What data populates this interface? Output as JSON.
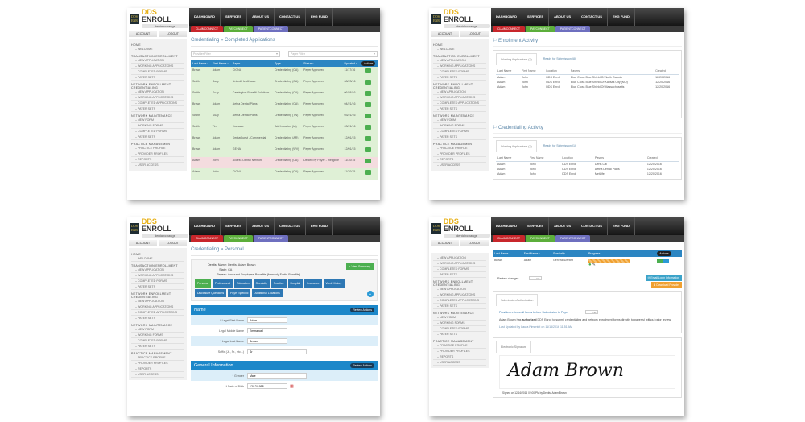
{
  "brand": {
    "logo_box": "DDS ENROLL",
    "name_dds": "DDS",
    "name_enroll": "ENROLL",
    "tagline": "dentalxchange"
  },
  "account": {
    "account_label": "ACCOUNT",
    "logout_label": "LOGOUT"
  },
  "topnav": [
    "DASHBOARD",
    "SERVICES",
    "ABOUT US",
    "CONTACT US",
    "EHG FUND"
  ],
  "subnav": [
    "CLAIMCONNECT",
    "PAYCONNECT",
    "PATIENTCONNECT"
  ],
  "sidebar": {
    "home": "HOME",
    "welcome": "WELCOME",
    "transaction": "TRANSACTION ENROLLMENT",
    "transaction_items": [
      "NEW APPLICATION",
      "WORKING APPLICATIONS",
      "COMPLETED FORMS",
      "PAYER SETS"
    ],
    "network_cred": "NETWORK ENROLLMENT CREDENTIALING",
    "network_cred_items": [
      "NEW APPLICATION",
      "WORKING APPLICATIONS",
      "COMPLETED APPLICATIONS",
      "PAYER SETS"
    ],
    "network_maint": "NETWORK MAINTENANCE",
    "network_maint_items": [
      "NEW FORM",
      "WORKING FORMS",
      "COMPLETED FORMS",
      "PAYER SETS"
    ],
    "practice": "PRACTICE MANAGEMENT",
    "practice_items": [
      "PRACTICE PROFILE",
      "PROVIDER PROFILES",
      "REPORTS",
      "USER ACCESS"
    ]
  },
  "completed": {
    "breadcrumb": "Credentialing  »  Completed Applications",
    "provider_filter_placeholder": "Provider Filter",
    "payer_filter_placeholder": "Payer Filter",
    "columns": [
      "Last Name ›",
      "First Name ›",
      "Payer",
      "Type",
      "Status ›",
      "Updated ›",
      "Actions"
    ],
    "rows": [
      {
        "last": "Brown",
        "first": "Adam",
        "payer": "CIGNA",
        "type": "Credentialing (CA)",
        "status": "Payer Approved",
        "updated": "11/17/16",
        "state": "ok"
      },
      {
        "last": "Smith",
        "first": "Suzy",
        "payer": "United Healthcare",
        "type": "Credentialing (CA)",
        "status": "Payer Approved",
        "updated": "08/23/16",
        "state": "ok"
      },
      {
        "last": "Smith",
        "first": "Suzy",
        "payer": "Careington Benefit Solutions",
        "type": "Credentialing (CA)",
        "status": "Payer Approved",
        "updated": "06/28/16",
        "state": "ok"
      },
      {
        "last": "Brown",
        "first": "Adam",
        "payer": "Aetna Dental Plans",
        "type": "Credentialing (CA)",
        "status": "Payer Approved",
        "updated": "04/21/16",
        "state": "ok"
      },
      {
        "last": "Smith",
        "first": "Suzy",
        "payer": "Aetna Dental Plans",
        "type": "Credentialing (TN)",
        "status": "Payer Approved",
        "updated": "03/21/16",
        "state": "ok"
      },
      {
        "last": "Smith",
        "first": "Tim",
        "payer": "Humana",
        "type": "Add Location (IA)",
        "status": "Payer Approved",
        "updated": "03/21/16",
        "state": "ok"
      },
      {
        "last": "Brown",
        "first": "Adam",
        "payer": "DentaQuest - Commercial",
        "type": "Credentialing (AR)",
        "status": "Payer Approved",
        "updated": "12/01/15",
        "state": "ok"
      },
      {
        "last": "Brown",
        "first": "Adam",
        "payer": "GEHA",
        "type": "Credentialing (WV)",
        "status": "Payer Approved",
        "updated": "12/01/15",
        "state": "ok"
      },
      {
        "last": "Adam",
        "first": "John",
        "payer": "Access Dental Network",
        "type": "Credentialing (CA)",
        "status": "Denied by Payer - Ineligible",
        "updated": "11/30/15",
        "state": "bad"
      },
      {
        "last": "Adam",
        "first": "John",
        "payer": "CIGNA",
        "type": "Credentialing (CA)",
        "status": "Payer Approved",
        "updated": "11/30/15",
        "state": "ok"
      }
    ]
  },
  "activity": {
    "enrollment_title": "Enrollment Activity",
    "enrollment_tabs": [
      "Working Applications (3)",
      "Ready for Submission (8)"
    ],
    "columns": [
      "Last Name",
      "First Name",
      "Location",
      "Payers",
      "Created"
    ],
    "enrollment_rows": [
      [
        "Adam",
        "John",
        "DDS Enroll",
        "Blue Cross Blue Shield Of North Dakota",
        "12/20/2016"
      ],
      [
        "Adam",
        "John",
        "DDS Enroll",
        "Blue Cross Blue Shield Of Kansas City (MO)",
        "12/20/2016"
      ],
      [
        "Adam",
        "John",
        "DDS Enroll",
        "Blue Cross Blue Shield Of Massachusetts",
        "12/20/2016"
      ]
    ],
    "credentialing_title": "Credentialing Activity",
    "credentialing_tabs": [
      "Working Applications (3)",
      "Ready for Submission (1)"
    ],
    "credentialing_rows": [
      [
        "Adam",
        "John",
        "DDS Enroll",
        "Denti-Cal",
        "12/20/2016"
      ],
      [
        "Adam",
        "John",
        "DDS Enroll",
        "Aetna Dental Plans",
        "12/20/2016"
      ],
      [
        "Adam",
        "John",
        "DDS Enroll",
        "MetLife",
        "12/20/2016"
      ]
    ]
  },
  "personal": {
    "breadcrumb": "Credentialing  »  Personal",
    "dentist_label": "Dentist Name:",
    "dentist_value": "Dentist Adam Brown",
    "state_label": "State:",
    "state_value": "CA",
    "payers_label": "Payers:",
    "payers_value": "Assurant Employee Benefits (formerly Fortis Benefits)",
    "view_summary": "▸ View Summary",
    "section_tabs": [
      "Personal",
      "Professional",
      "Education",
      "Specialty",
      "Practice",
      "Hospital",
      "Insurance",
      "Work History",
      "Disclosure Questions",
      "Payer Specific",
      "Additional Locations"
    ],
    "name_section": "Name",
    "review_actions": "Review Actions",
    "fields": [
      {
        "label": "* Legal First Name",
        "value": "Adam"
      },
      {
        "label": "Legal Middle Name",
        "value": "Emmanuel"
      },
      {
        "label": "* Legal Last Name",
        "value": "Brown"
      },
      {
        "label": "Suffix (Jr., Sr., etc...)",
        "value": "Sr"
      }
    ],
    "general_section": "General Information",
    "gender_label": "* Gender",
    "gender_value": "Male",
    "dob_label": "* Date of Birth",
    "dob_value": "12/12/1958"
  },
  "provider": {
    "columns": [
      "Last Name ▵",
      "First Name ›",
      "Specialty",
      "Progress",
      "Actions"
    ],
    "row": {
      "last": "Brown",
      "first": "Adam",
      "specialty": "General Dentist"
    },
    "review_changes": "Review changes",
    "toggle_no": "No",
    "email_login": "✉ Email Login Information",
    "download": "⬇ Download Provider",
    "auth_tab": "Submission Authorization",
    "auth_question": "Provider reviews all forms before Submission to Payer",
    "auth_text_1": "Adam Brown has",
    "auth_text_bold": "authorized",
    "auth_text_2": "DDS Enroll to submit credentialing and network enrollment forms directly to payer(s) without prior review.",
    "last_updated": "Last Updated by Laura Pimentel on 11/16/2016 11:51 AM",
    "sig_tab": "Electronic Signature",
    "signature": "Adam Brown",
    "signed": "Signed on 12/16/2016 02:00 PM by Dentist Adam Brown"
  },
  "colors": {
    "header_blue": "#2b85c2",
    "approved_row": "#dff0d6",
    "denied_row": "#f4dcdf",
    "action_green": "#4caf50",
    "claim_red": "#c8262b",
    "pay_green": "#5cae3b",
    "patient_purple": "#6e6fbf"
  }
}
